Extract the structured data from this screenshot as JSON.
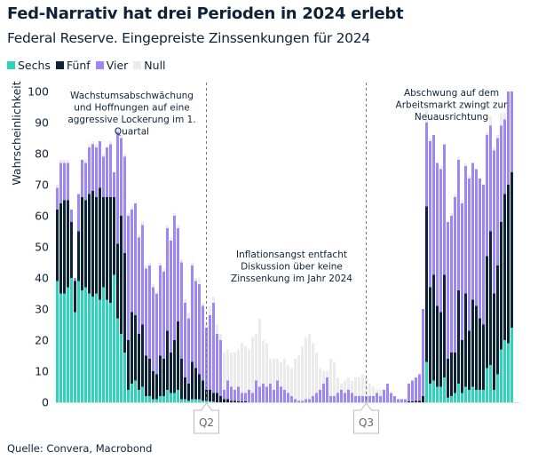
{
  "title": "Fed-Narrativ hat drei Perioden in 2024 erlebt",
  "subtitle": "Federal Reserve. Eingepreiste Zinssenkungen für 2024",
  "source": "Quelle: Convera, Macrobond",
  "chart_data": {
    "type": "bar",
    "stacked": true,
    "ylabel": "Wahrscheinlichkeit",
    "ylim": [
      0,
      100
    ],
    "yticks": [
      "0",
      "10",
      "20",
      "30",
      "40",
      "50",
      "60",
      "70",
      "80",
      "90",
      "100"
    ],
    "grid": false,
    "legend_placement": "top-left",
    "markers": [
      {
        "label": "Q2",
        "bar_index": 42
      },
      {
        "label": "Q3",
        "bar_index": 87
      }
    ],
    "annotations": [
      {
        "lines": [
          "Wachstumsabschwächung",
          "und Hoffnungen auf eine",
          "aggressive Lockerung im 1.",
          "Quartal"
        ],
        "bar_index": 21
      },
      {
        "lines": [
          "Inflationsangst entfacht",
          "Diskussion über keine",
          "Zinssenkung im Jahr 2024"
        ],
        "bar_index": 66
      },
      {
        "lines": [
          "Abschwung auf dem",
          "Arbeitsmarkt zwingt zur",
          "Neuausrichtung"
        ],
        "bar_index": 111
      }
    ],
    "series": [
      {
        "name": "Sechs",
        "color": "#2dd4bc",
        "values": [
          39,
          35,
          35,
          37,
          40,
          29,
          39,
          36,
          37,
          35,
          34,
          35,
          33,
          37,
          33,
          32,
          41,
          27,
          22,
          16,
          4,
          6,
          7,
          4,
          5,
          2,
          2,
          1,
          1,
          2,
          2,
          4,
          3,
          3,
          4,
          1,
          1,
          0.5,
          1,
          1,
          1,
          0.5,
          0.5,
          0.3,
          0.2,
          0,
          0,
          0,
          0,
          0,
          0,
          0,
          0,
          0,
          0,
          0,
          0,
          0,
          0,
          0,
          0,
          0,
          0,
          0,
          0,
          0,
          0,
          0,
          0,
          0,
          0,
          0,
          0,
          0,
          0,
          0,
          0,
          0,
          0,
          0,
          0,
          0,
          0,
          0,
          0,
          0,
          0,
          0,
          0,
          0,
          0,
          0,
          0,
          0,
          0,
          0,
          0,
          0,
          0,
          0,
          0,
          0,
          0,
          0,
          13,
          6,
          7,
          5,
          5,
          8,
          1.5,
          2,
          3,
          6,
          3,
          5,
          4,
          5,
          4,
          4,
          4,
          11,
          12,
          4,
          9,
          17,
          20,
          19,
          24
        ]
      },
      {
        "name": "Fünf",
        "color": "#0c2336",
        "values": [
          23,
          29,
          30,
          28,
          18,
          10,
          16,
          30,
          28,
          32,
          34,
          31,
          36,
          29,
          33,
          34,
          25,
          24,
          38,
          32,
          16,
          23,
          21,
          18,
          20,
          13,
          12,
          9,
          8,
          13,
          12,
          19,
          13,
          17,
          22,
          13,
          7,
          5.5,
          12,
          10,
          8,
          6.5,
          3.5,
          3.7,
          2.8,
          3,
          2,
          1,
          1,
          0.5,
          0.5,
          0.3,
          0.3,
          0.3,
          0,
          0,
          0,
          0,
          0,
          0,
          0,
          0,
          0,
          0,
          0,
          0,
          0,
          0,
          0,
          0,
          0,
          0,
          0,
          0,
          0,
          0,
          0,
          0,
          0,
          0,
          0,
          0,
          0,
          0,
          0,
          0,
          0,
          0,
          0,
          0,
          0,
          0,
          0,
          0,
          0,
          0,
          0,
          0,
          0,
          0.3,
          0.3,
          0.5,
          0.5,
          2,
          50,
          31,
          34,
          26,
          24,
          33,
          12.5,
          14,
          13,
          30,
          17,
          30,
          19,
          28,
          27,
          23,
          21,
          36,
          43,
          31,
          35,
          41,
          47,
          51,
          50
        ]
      },
      {
        "name": "Vier",
        "color": "#9b87f5",
        "values": [
          7,
          13,
          12,
          12,
          4,
          1,
          12,
          12,
          12,
          15,
          15,
          16,
          15,
          13,
          16,
          17,
          8,
          36,
          25,
          31,
          40,
          33,
          36,
          31,
          32,
          28,
          30,
          27,
          26,
          29,
          28,
          33,
          36,
          40,
          30,
          31,
          24,
          21,
          31,
          28,
          29,
          24,
          20,
          24,
          29,
          19,
          18,
          3,
          6,
          4.5,
          3.5,
          4.7,
          2.7,
          2.7,
          4,
          3,
          7,
          5,
          6,
          5,
          6,
          4,
          7,
          5,
          4,
          3,
          2,
          1,
          0.5,
          0.5,
          1,
          1,
          2,
          3,
          4,
          6,
          8,
          2,
          2,
          3,
          4,
          3,
          4,
          3,
          2,
          2,
          2,
          2,
          2,
          2,
          3,
          2,
          4,
          6,
          3,
          2,
          1,
          1,
          1,
          5.7,
          6.7,
          7.5,
          8.5,
          28,
          27,
          47,
          45,
          46,
          46,
          42,
          44,
          44,
          50,
          42,
          44,
          41,
          49,
          44,
          44,
          45,
          45,
          39,
          34,
          46,
          41,
          31,
          24,
          30,
          26
        ]
      },
      {
        "name": "Null",
        "color": "#ebebeb",
        "values": [
          1,
          1,
          1,
          1,
          0,
          0,
          0,
          0,
          1,
          1,
          1,
          1,
          0,
          1,
          0,
          1,
          0,
          1,
          1,
          1,
          1,
          1,
          0,
          1,
          1,
          1,
          1,
          1,
          0,
          1,
          1,
          1,
          1,
          1,
          1,
          1,
          1,
          2,
          1,
          1,
          2,
          1,
          2,
          3,
          2,
          3,
          2,
          12,
          10,
          11,
          12,
          12,
          16,
          15,
          13,
          18,
          15,
          22,
          14,
          14,
          8,
          10,
          7,
          8,
          10,
          9,
          9,
          13,
          14.5,
          17.5,
          20,
          21,
          17,
          13,
          7,
          4,
          2,
          12,
          11,
          5,
          2,
          4,
          4,
          4,
          6,
          6,
          7,
          6,
          4,
          3,
          1,
          2,
          0,
          0,
          0,
          0,
          0,
          0,
          0,
          0,
          0,
          0,
          0,
          0,
          4,
          1,
          0,
          0,
          1,
          0,
          0,
          1,
          1,
          1,
          1,
          1,
          1,
          0,
          0,
          0,
          0,
          1,
          3,
          1,
          1,
          4,
          2,
          0,
          0
        ]
      }
    ]
  }
}
